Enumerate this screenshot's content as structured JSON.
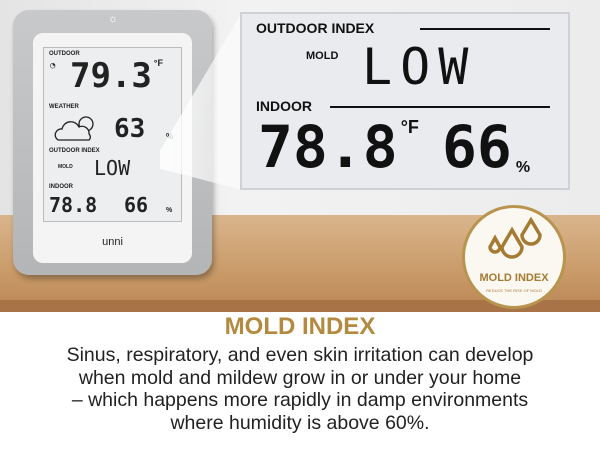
{
  "device": {
    "brand": "unni",
    "outdoor_label": "OUTDOOR",
    "outdoor_temp": "79.3",
    "temp_unit": "°F",
    "weather_label": "WEATHER",
    "outdoor_humidity": "63",
    "humidity_unit": "%",
    "index_label": "OUTDOOR INDEX",
    "mold_label": "MOLD",
    "mold_value": "LOW",
    "indoor_label": "INDOOR",
    "indoor_temp": "78.8",
    "indoor_humidity": "66"
  },
  "zoom_panel": {
    "index_label": "OUTDOOR INDEX",
    "mold_label": "MOLD",
    "mold_value": "LOW",
    "indoor_label": "INDOOR",
    "indoor_temp": "78.8",
    "temp_unit": "°F",
    "indoor_humidity": "66",
    "humidity_unit": "%"
  },
  "badge": {
    "title": "MOLD INDEX",
    "subtitle": "REDUCE THE RISK OF MOLD",
    "icon": "water-drops-icon",
    "color": "#b38a3f"
  },
  "caption": {
    "title": "MOLD INDEX",
    "lines": [
      "Sinus, respiratory, and even skin irritation can develop",
      "when mold and mildew grow in or under your home",
      "– which happens more rapidly in damp environments",
      "where humidity is above 60%."
    ]
  }
}
